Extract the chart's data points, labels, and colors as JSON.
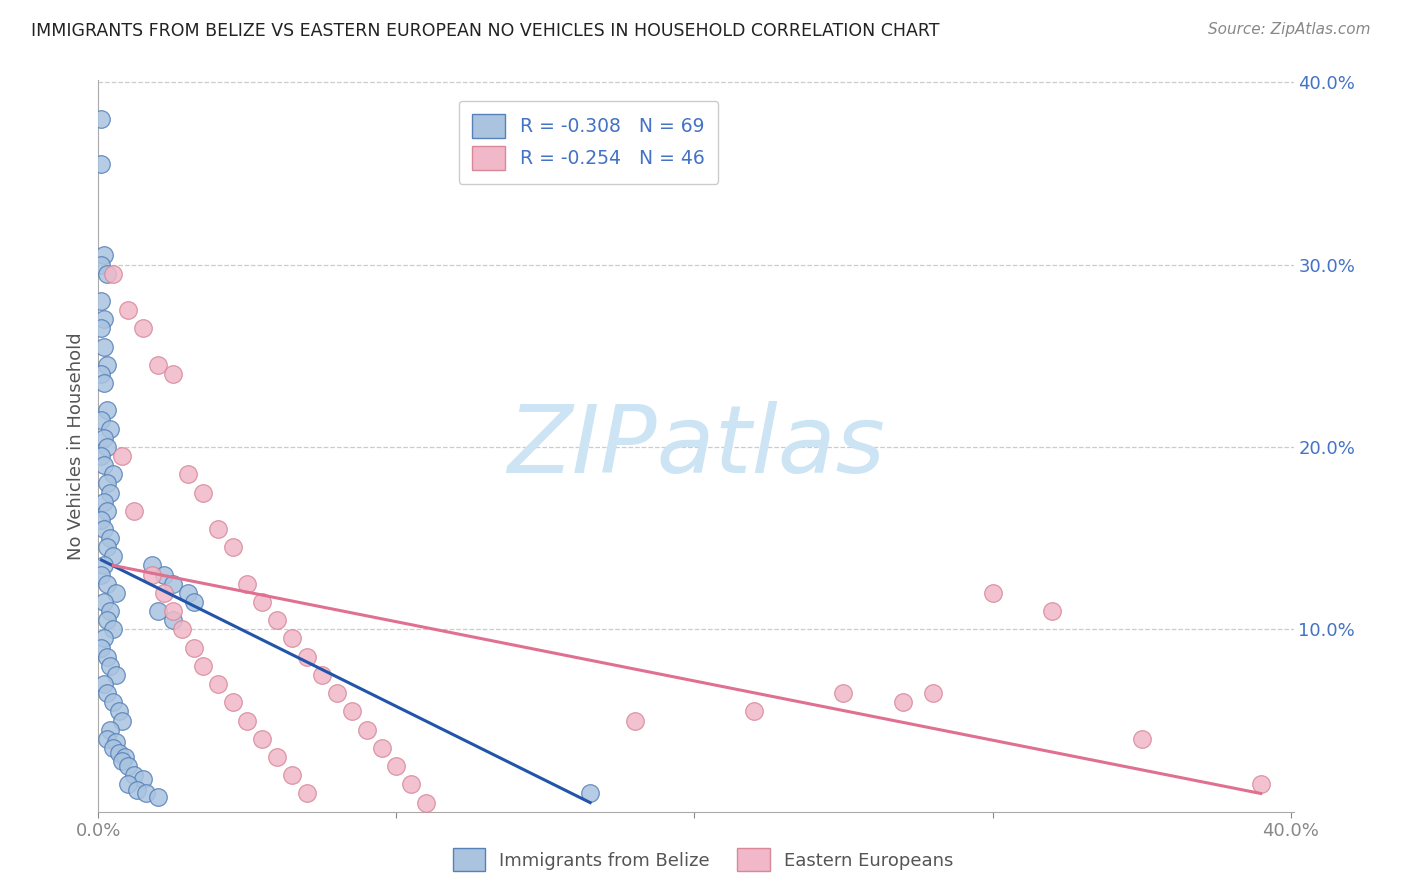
{
  "title": "IMMIGRANTS FROM BELIZE VS EASTERN EUROPEAN NO VEHICLES IN HOUSEHOLD CORRELATION CHART",
  "source": "Source: ZipAtlas.com",
  "ylabel": "No Vehicles in Household",
  "legend_label1": "R = -0.308   N = 69",
  "legend_label2": "R = -0.254   N = 46",
  "legend_bottom1": "Immigrants from Belize",
  "legend_bottom2": "Eastern Europeans",
  "blue_fill": "#aac4e0",
  "blue_edge": "#5580b8",
  "blue_line": "#2255aa",
  "pink_fill": "#f0b8c8",
  "pink_edge": "#d88898",
  "pink_line": "#e07090",
  "watermark_color": "#cce4f4",
  "grid_color": "#cccccc",
  "text_color": "#4472c4",
  "label_color": "#555555",
  "blue_scatter_x": [
    0.001,
    0.002,
    0.001,
    0.003,
    0.001,
    0.002,
    0.001,
    0.002,
    0.003,
    0.001,
    0.002,
    0.003,
    0.001,
    0.004,
    0.002,
    0.003,
    0.001,
    0.002,
    0.005,
    0.003,
    0.004,
    0.002,
    0.003,
    0.001,
    0.002,
    0.004,
    0.003,
    0.005,
    0.002,
    0.001,
    0.003,
    0.006,
    0.002,
    0.004,
    0.003,
    0.005,
    0.002,
    0.001,
    0.003,
    0.004,
    0.006,
    0.002,
    0.003,
    0.005,
    0.007,
    0.008,
    0.004,
    0.003,
    0.006,
    0.005,
    0.007,
    0.009,
    0.008,
    0.01,
    0.012,
    0.015,
    0.01,
    0.013,
    0.016,
    0.02,
    0.018,
    0.022,
    0.025,
    0.03,
    0.032,
    0.02,
    0.025,
    0.165,
    0.001
  ],
  "blue_scatter_y": [
    0.355,
    0.305,
    0.3,
    0.295,
    0.28,
    0.27,
    0.265,
    0.255,
    0.245,
    0.24,
    0.235,
    0.22,
    0.215,
    0.21,
    0.205,
    0.2,
    0.195,
    0.19,
    0.185,
    0.18,
    0.175,
    0.17,
    0.165,
    0.16,
    0.155,
    0.15,
    0.145,
    0.14,
    0.135,
    0.13,
    0.125,
    0.12,
    0.115,
    0.11,
    0.105,
    0.1,
    0.095,
    0.09,
    0.085,
    0.08,
    0.075,
    0.07,
    0.065,
    0.06,
    0.055,
    0.05,
    0.045,
    0.04,
    0.038,
    0.035,
    0.032,
    0.03,
    0.028,
    0.025,
    0.02,
    0.018,
    0.015,
    0.012,
    0.01,
    0.008,
    0.135,
    0.13,
    0.125,
    0.12,
    0.115,
    0.11,
    0.105,
    0.01,
    0.38
  ],
  "pink_scatter_x": [
    0.005,
    0.01,
    0.015,
    0.02,
    0.025,
    0.008,
    0.03,
    0.035,
    0.04,
    0.012,
    0.045,
    0.018,
    0.05,
    0.022,
    0.055,
    0.025,
    0.06,
    0.028,
    0.065,
    0.032,
    0.07,
    0.035,
    0.075,
    0.04,
    0.08,
    0.045,
    0.085,
    0.05,
    0.09,
    0.055,
    0.095,
    0.06,
    0.1,
    0.065,
    0.105,
    0.07,
    0.11,
    0.3,
    0.32,
    0.25,
    0.27,
    0.22,
    0.18,
    0.35,
    0.39,
    0.28
  ],
  "pink_scatter_y": [
    0.295,
    0.275,
    0.265,
    0.245,
    0.24,
    0.195,
    0.185,
    0.175,
    0.155,
    0.165,
    0.145,
    0.13,
    0.125,
    0.12,
    0.115,
    0.11,
    0.105,
    0.1,
    0.095,
    0.09,
    0.085,
    0.08,
    0.075,
    0.07,
    0.065,
    0.06,
    0.055,
    0.05,
    0.045,
    0.04,
    0.035,
    0.03,
    0.025,
    0.02,
    0.015,
    0.01,
    0.005,
    0.12,
    0.11,
    0.065,
    0.06,
    0.055,
    0.05,
    0.04,
    0.015,
    0.065
  ],
  "blue_trend_x": [
    0.001,
    0.165
  ],
  "blue_trend_y": [
    0.138,
    0.005
  ],
  "pink_trend_x": [
    0.005,
    0.39
  ],
  "pink_trend_y": [
    0.135,
    0.01
  ],
  "xlim": [
    0.0,
    0.401
  ],
  "ylim": [
    0.0,
    0.401
  ],
  "xtick_vals": [
    0.0,
    0.1,
    0.2,
    0.3,
    0.4
  ],
  "ytick_right_vals": [
    0.0,
    0.1,
    0.2,
    0.3,
    0.4
  ],
  "ytick_right_labels": [
    "",
    "10.0%",
    "20.0%",
    "30.0%",
    "40.0%"
  ]
}
